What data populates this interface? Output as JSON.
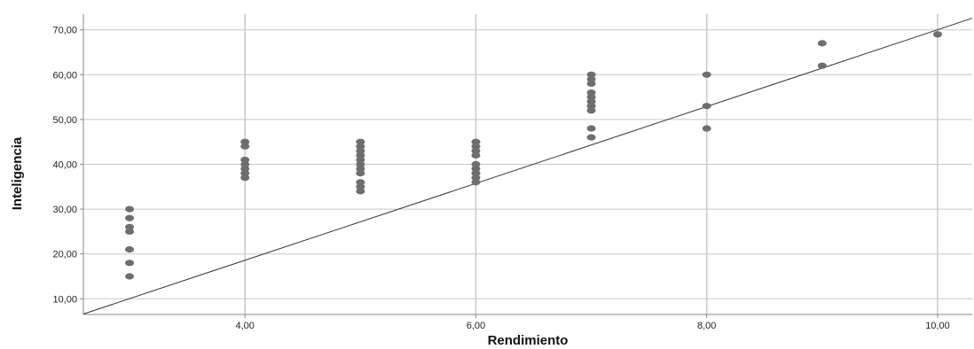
{
  "chart_data": {
    "type": "scatter",
    "title": "",
    "xlabel": "Rendimiento",
    "ylabel": "Inteligencia",
    "xlim": [
      2.6,
      10.3
    ],
    "ylim": [
      6.5,
      73.5
    ],
    "xticks": [
      {
        "value": 4,
        "label": "4,00"
      },
      {
        "value": 6,
        "label": "6,00"
      },
      {
        "value": 8,
        "label": "8,00"
      },
      {
        "value": 10,
        "label": "10,00"
      }
    ],
    "yticks": [
      {
        "value": 10,
        "label": "10,00"
      },
      {
        "value": 20,
        "label": "20,00"
      },
      {
        "value": 30,
        "label": "30,00"
      },
      {
        "value": 40,
        "label": "40,00"
      },
      {
        "value": 50,
        "label": "50,00"
      },
      {
        "value": 60,
        "label": "60,00"
      },
      {
        "value": 70,
        "label": "70,00"
      }
    ],
    "grid": {
      "x": true,
      "y": true
    },
    "fit_line": {
      "x": [
        2.6,
        10.3
      ],
      "y": [
        6.6,
        72.6
      ]
    },
    "points": [
      {
        "x": 3,
        "y": 30
      },
      {
        "x": 3,
        "y": 28
      },
      {
        "x": 3,
        "y": 26
      },
      {
        "x": 3,
        "y": 25
      },
      {
        "x": 3,
        "y": 21
      },
      {
        "x": 3,
        "y": 18
      },
      {
        "x": 3,
        "y": 15
      },
      {
        "x": 4,
        "y": 45
      },
      {
        "x": 4,
        "y": 44
      },
      {
        "x": 4,
        "y": 41
      },
      {
        "x": 4,
        "y": 40
      },
      {
        "x": 4,
        "y": 39
      },
      {
        "x": 4,
        "y": 38
      },
      {
        "x": 4,
        "y": 37
      },
      {
        "x": 5,
        "y": 45
      },
      {
        "x": 5,
        "y": 44
      },
      {
        "x": 5,
        "y": 43
      },
      {
        "x": 5,
        "y": 42
      },
      {
        "x": 5,
        "y": 41
      },
      {
        "x": 5,
        "y": 40
      },
      {
        "x": 5,
        "y": 39
      },
      {
        "x": 5,
        "y": 38
      },
      {
        "x": 5,
        "y": 36
      },
      {
        "x": 5,
        "y": 35
      },
      {
        "x": 5,
        "y": 34
      },
      {
        "x": 6,
        "y": 45
      },
      {
        "x": 6,
        "y": 44
      },
      {
        "x": 6,
        "y": 43
      },
      {
        "x": 6,
        "y": 42
      },
      {
        "x": 6,
        "y": 40
      },
      {
        "x": 6,
        "y": 39
      },
      {
        "x": 6,
        "y": 38
      },
      {
        "x": 6,
        "y": 37
      },
      {
        "x": 6,
        "y": 36
      },
      {
        "x": 7,
        "y": 60
      },
      {
        "x": 7,
        "y": 59
      },
      {
        "x": 7,
        "y": 58
      },
      {
        "x": 7,
        "y": 56
      },
      {
        "x": 7,
        "y": 55
      },
      {
        "x": 7,
        "y": 54
      },
      {
        "x": 7,
        "y": 53
      },
      {
        "x": 7,
        "y": 52
      },
      {
        "x": 7,
        "y": 48
      },
      {
        "x": 7,
        "y": 46
      },
      {
        "x": 8,
        "y": 60
      },
      {
        "x": 8,
        "y": 53
      },
      {
        "x": 8,
        "y": 48
      },
      {
        "x": 9,
        "y": 67
      },
      {
        "x": 9,
        "y": 62
      },
      {
        "x": 10,
        "y": 69
      }
    ],
    "colors": {
      "point": "#6e6e6e",
      "fit_line": "#333333",
      "gridline": "#c8c8c8",
      "axis": "#888888"
    }
  }
}
